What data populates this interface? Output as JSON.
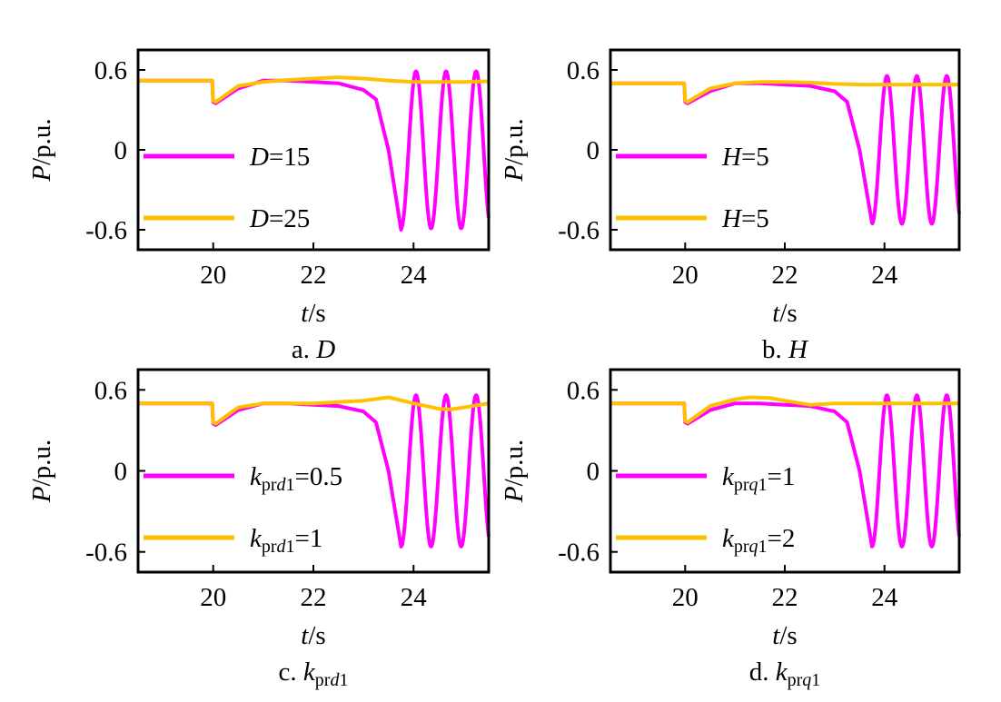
{
  "colors": {
    "series_1": "#ff00ff",
    "series_2": "#ffc000",
    "axis": "#000000"
  },
  "chart_data": [
    {
      "type": "line",
      "caption": {
        "prefix": "a.",
        "symbol": "D",
        "subscript": "",
        "subscript_italic": ""
      },
      "ylabel": {
        "var": "P",
        "unit": "/p.u."
      },
      "xlabel": {
        "var": "t",
        "unit": "/s"
      },
      "xlim": [
        18.5,
        25.5
      ],
      "ylim": [
        -0.75,
        0.75
      ],
      "x_ticks": [
        20,
        22,
        24
      ],
      "y_ticks": [
        0.6,
        0,
        -0.6
      ],
      "x_tick_labels": [
        "20",
        "22",
        "24"
      ],
      "y_tick_labels": [
        "0.6",
        "0",
        "-0.6"
      ],
      "series": [
        {
          "name": {
            "var": "D",
            "sub": "",
            "sub_italic": "",
            "rest": "=15"
          },
          "x": [
            18.5,
            19.98,
            20.0,
            20.05,
            20.5,
            21.0,
            21.5,
            22.0,
            22.5,
            23.0,
            23.25,
            23.5,
            23.75
          ],
          "y": [
            0.52,
            0.52,
            0.36,
            0.35,
            0.46,
            0.52,
            0.52,
            0.51,
            0.5,
            0.45,
            0.38,
            0.0,
            -0.6
          ],
          "osc": {
            "start": 23.75,
            "end": 25.5,
            "amplitude": 0.59,
            "period": 0.6,
            "phase": 3.14159
          }
        },
        {
          "name": {
            "var": "D",
            "sub": "",
            "sub_italic": "",
            "rest": "=25"
          },
          "x": [
            18.5,
            19.98,
            20.0,
            20.05,
            20.5,
            21.0,
            21.5,
            22.0,
            22.5,
            23.0,
            23.5,
            24.0,
            24.5,
            25.0,
            25.5
          ],
          "y": [
            0.52,
            0.52,
            0.37,
            0.36,
            0.48,
            0.51,
            0.525,
            0.535,
            0.545,
            0.535,
            0.52,
            0.51,
            0.51,
            0.51,
            0.515
          ]
        }
      ]
    },
    {
      "type": "line",
      "caption": {
        "prefix": "b.",
        "symbol": "H",
        "subscript": "",
        "subscript_italic": ""
      },
      "ylabel": {
        "var": "P",
        "unit": "/p.u."
      },
      "xlabel": {
        "var": "t",
        "unit": "/s"
      },
      "xlim": [
        18.5,
        25.5
      ],
      "ylim": [
        -0.75,
        0.75
      ],
      "x_ticks": [
        20,
        22,
        24
      ],
      "y_ticks": [
        0.6,
        0,
        -0.6
      ],
      "x_tick_labels": [
        "20",
        "22",
        "24"
      ],
      "y_tick_labels": [
        "0.6",
        "0",
        "-0.6"
      ],
      "series": [
        {
          "name": {
            "var": "H",
            "sub": "",
            "sub_italic": "",
            "rest": "=5"
          },
          "x": [
            18.5,
            19.98,
            20.0,
            20.05,
            20.5,
            21.0,
            21.5,
            22.0,
            22.5,
            23.0,
            23.25,
            23.5,
            23.75
          ],
          "y": [
            0.5,
            0.5,
            0.36,
            0.35,
            0.44,
            0.5,
            0.5,
            0.49,
            0.48,
            0.44,
            0.36,
            0.0,
            -0.55
          ],
          "osc": {
            "start": 23.75,
            "end": 25.5,
            "amplitude": 0.555,
            "period": 0.6,
            "phase": 3.14159
          }
        },
        {
          "name": {
            "var": "H",
            "sub": "",
            "sub_italic": "",
            "rest": "=5"
          },
          "x": [
            18.5,
            19.98,
            20.0,
            20.05,
            20.5,
            21.0,
            21.5,
            22.0,
            22.5,
            23.0,
            23.5,
            24.0,
            24.5,
            25.0,
            25.5
          ],
          "y": [
            0.5,
            0.5,
            0.37,
            0.36,
            0.46,
            0.5,
            0.51,
            0.51,
            0.505,
            0.495,
            0.49,
            0.49,
            0.49,
            0.49,
            0.49
          ]
        }
      ]
    },
    {
      "type": "line",
      "caption": {
        "prefix": "c.",
        "symbol": "k",
        "subscript": "pr",
        "subscript_italic": "d",
        "subscript_end": "1"
      },
      "ylabel": {
        "var": "P",
        "unit": "/p.u."
      },
      "xlabel": {
        "var": "t",
        "unit": "/s"
      },
      "xlim": [
        18.5,
        25.5
      ],
      "ylim": [
        -0.75,
        0.75
      ],
      "x_ticks": [
        20,
        22,
        24
      ],
      "y_ticks": [
        0.6,
        0,
        -0.6
      ],
      "x_tick_labels": [
        "20",
        "22",
        "24"
      ],
      "y_tick_labels": [
        "0.6",
        "0",
        "-0.6"
      ],
      "series": [
        {
          "name": {
            "var": "k",
            "sub": "pr",
            "sub_italic": "d",
            "sub_end": "1",
            "rest": "=0.5"
          },
          "x": [
            18.5,
            19.98,
            20.0,
            20.05,
            20.5,
            21.0,
            21.5,
            22.0,
            22.5,
            23.0,
            23.25,
            23.5,
            23.75
          ],
          "y": [
            0.5,
            0.5,
            0.35,
            0.34,
            0.45,
            0.5,
            0.5,
            0.49,
            0.48,
            0.44,
            0.36,
            0.0,
            -0.56
          ],
          "osc": {
            "start": 23.75,
            "end": 25.5,
            "amplitude": 0.56,
            "period": 0.6,
            "phase": 3.14159
          }
        },
        {
          "name": {
            "var": "k",
            "sub": "pr",
            "sub_italic": "d",
            "sub_end": "1",
            "rest": "=1"
          },
          "x": [
            18.5,
            19.98,
            20.0,
            20.05,
            20.5,
            21.0,
            21.5,
            22.0,
            22.5,
            23.0,
            23.5,
            24.0,
            24.5,
            24.75,
            25.0,
            25.5
          ],
          "y": [
            0.5,
            0.5,
            0.36,
            0.35,
            0.47,
            0.5,
            0.5,
            0.5,
            0.51,
            0.52,
            0.545,
            0.5,
            0.46,
            0.455,
            0.47,
            0.5
          ]
        }
      ]
    },
    {
      "type": "line",
      "caption": {
        "prefix": "d.",
        "symbol": "k",
        "subscript": "pr",
        "subscript_italic": "q",
        "subscript_end": "1"
      },
      "ylabel": {
        "var": "P",
        "unit": "/p.u."
      },
      "xlabel": {
        "var": "t",
        "unit": "/s"
      },
      "xlim": [
        18.5,
        25.5
      ],
      "ylim": [
        -0.75,
        0.75
      ],
      "x_ticks": [
        20,
        22,
        24
      ],
      "y_ticks": [
        0.6,
        0,
        -0.6
      ],
      "x_tick_labels": [
        "20",
        "22",
        "24"
      ],
      "y_tick_labels": [
        "0.6",
        "0",
        "-0.6"
      ],
      "series": [
        {
          "name": {
            "var": "k",
            "sub": "pr",
            "sub_italic": "q",
            "sub_end": "1",
            "rest": "=1"
          },
          "x": [
            18.5,
            19.98,
            20.0,
            20.05,
            20.5,
            21.0,
            21.5,
            22.0,
            22.5,
            23.0,
            23.25,
            23.5,
            23.75
          ],
          "y": [
            0.5,
            0.5,
            0.36,
            0.35,
            0.45,
            0.5,
            0.5,
            0.49,
            0.48,
            0.44,
            0.36,
            0.0,
            -0.56
          ],
          "osc": {
            "start": 23.75,
            "end": 25.5,
            "amplitude": 0.56,
            "period": 0.6,
            "phase": 3.14159
          }
        },
        {
          "name": {
            "var": "k",
            "sub": "pr",
            "sub_italic": "q",
            "sub_end": "1",
            "rest": "=2"
          },
          "x": [
            18.5,
            19.98,
            20.0,
            20.05,
            20.5,
            21.0,
            21.3,
            21.7,
            22.0,
            22.5,
            23.0,
            23.5,
            24.0,
            24.5,
            25.0,
            25.5
          ],
          "y": [
            0.5,
            0.5,
            0.37,
            0.36,
            0.48,
            0.53,
            0.545,
            0.54,
            0.52,
            0.49,
            0.5,
            0.5,
            0.5,
            0.5,
            0.5,
            0.5
          ]
        }
      ]
    }
  ]
}
